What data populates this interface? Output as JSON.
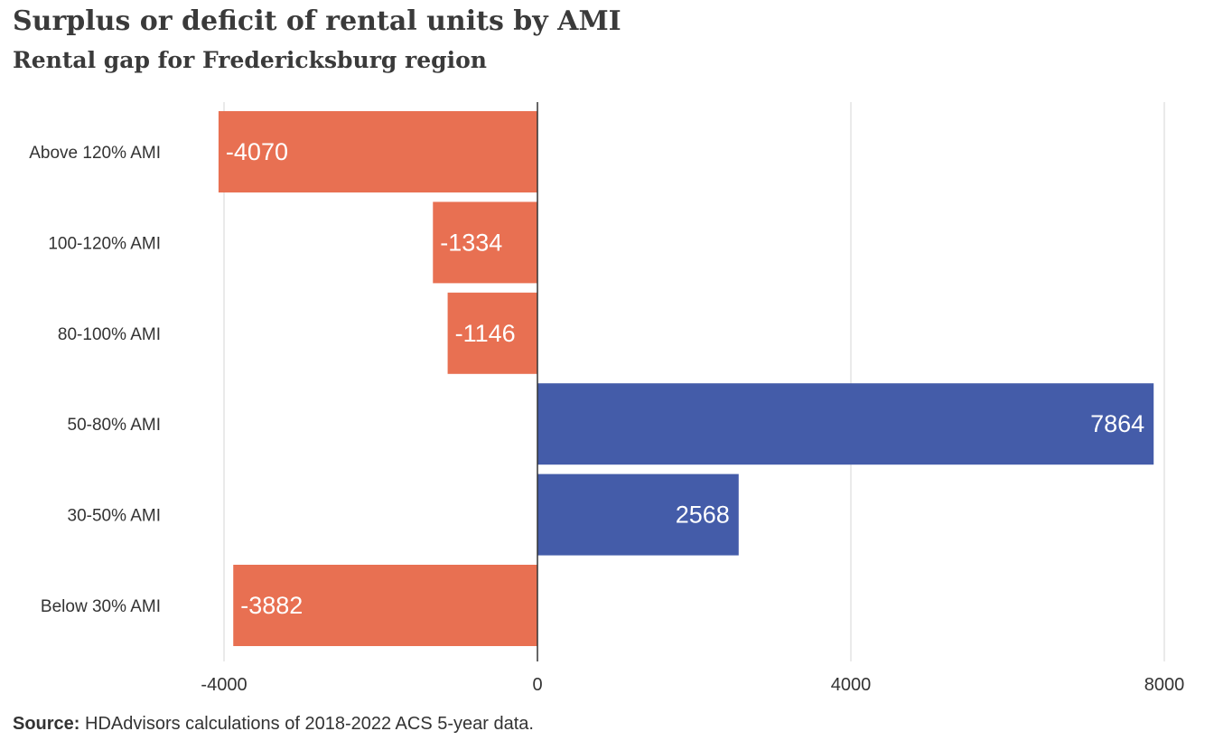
{
  "title": "Surplus or deficit of rental units by AMI",
  "subtitle": "Rental gap for Fredericksburg region",
  "source": {
    "label": "Source:",
    "text": "HDAdvisors calculations of 2018-2022 ACS 5-year data."
  },
  "colors": {
    "negative": "#e87052",
    "positive": "#445ca9",
    "grid": "#d6d6d6",
    "zero_line": "#333333",
    "text": "#333333"
  },
  "chart_data": {
    "type": "bar",
    "orientation": "horizontal",
    "categories": [
      "Above 120% AMI",
      "100-120% AMI",
      "80-100% AMI",
      "50-80% AMI",
      "30-50% AMI",
      "Below 30% AMI"
    ],
    "values": [
      -4070,
      -1334,
      -1146,
      7864,
      2568,
      -3882
    ],
    "value_labels": [
      "-4070",
      "-1334",
      "-1146",
      "7864",
      "2568",
      "-3882"
    ],
    "xlim": [
      -4000,
      8000
    ],
    "xticks": [
      -4000,
      0,
      4000,
      8000
    ],
    "xtick_labels": [
      "-4000",
      "0",
      "4000",
      "8000"
    ],
    "grid": true
  }
}
